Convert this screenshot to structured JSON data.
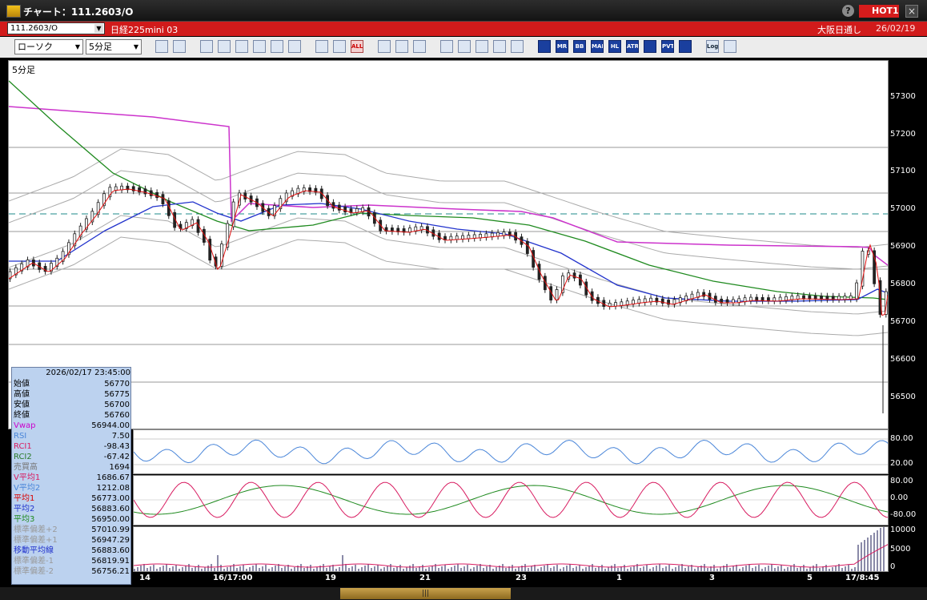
{
  "window": {
    "title": "チャート：111.2603/O",
    "hot_label": "HOT1",
    "help": "?",
    "close": "×"
  },
  "symbol_bar": {
    "code": "111.2603/O",
    "name": "日経225mini 03",
    "exchange": "大阪日通し",
    "date": "26/02/19"
  },
  "toolbar": {
    "chart_type": "ローソク",
    "period": "5分足",
    "icons": [
      "zoom-icon",
      "crosshair-icon",
      "pen-icon",
      "line-icon",
      "cursor-icon",
      "undo-icon",
      "list-icon",
      "trash-icon",
      "mark-icon",
      "mark2-icon",
      "all-icon",
      "grid-icon",
      "brush-icon",
      "color-icon",
      "download-icon",
      "search-icon",
      "table-icon",
      "swap-icon",
      "blank-icon",
      "table2-icon",
      "mr-icon",
      "bb-icon",
      "mae-icon",
      "hl-icon",
      "atr-icon",
      "rsi-icon",
      "pvt-icon",
      "box-icon",
      "log-icon",
      "plus-icon"
    ],
    "icon_labels": {
      "all": "ALL",
      "mr": "MR",
      "bb": "BB",
      "mae": "MAE",
      "hl": "HL",
      "atr": "ATR",
      "pvt": "PVT",
      "log": "Log"
    }
  },
  "main_chart": {
    "period_label": "5分足",
    "y_ticks": [
      "57300",
      "57200",
      "57100",
      "57000",
      "56900",
      "56800",
      "56700",
      "56600",
      "56500"
    ],
    "rsi_ticks": [
      "80.00",
      "20.00"
    ],
    "rci_ticks": [
      "80.00",
      "0.00",
      "-80.00"
    ],
    "vol_ticks": [
      "10000",
      "5000",
      "0"
    ],
    "x_ticks": [
      "14",
      "16/17:00",
      "19",
      "21",
      "23",
      "1",
      "3",
      "5",
      "17/8:45"
    ]
  },
  "info_panel": {
    "timestamp": "2026/02/17 23:45:00",
    "rows": [
      {
        "label": "始値",
        "value": "56770",
        "color": "#000000"
      },
      {
        "label": "高値",
        "value": "56775",
        "color": "#000000"
      },
      {
        "label": "安値",
        "value": "56700",
        "color": "#000000"
      },
      {
        "label": "終値",
        "value": "56760",
        "color": "#000000"
      },
      {
        "label": "Vwap",
        "value": "56944.00",
        "color": "#cc00cc"
      },
      {
        "label": "RSI",
        "value": "7.50",
        "color": "#4a86d9"
      },
      {
        "label": "RCI1",
        "value": "-98.43",
        "color": "#d81b60"
      },
      {
        "label": "RCI2",
        "value": "-67.42",
        "color": "#2a7a2a"
      },
      {
        "label": "売買高",
        "value": "1694",
        "color": "#777777"
      },
      {
        "label": "V平均1",
        "value": "1686.67",
        "color": "#d81b60"
      },
      {
        "label": "V平均2",
        "value": "1212.08",
        "color": "#4a86d9"
      },
      {
        "label": "平均1",
        "value": "56773.00",
        "color": "#d80000"
      },
      {
        "label": "平均2",
        "value": "56883.60",
        "color": "#2233cc"
      },
      {
        "label": "平均3",
        "value": "56950.00",
        "color": "#1f8a1f"
      },
      {
        "label": "標準偏差+2",
        "value": "57010.99",
        "color": "#999999"
      },
      {
        "label": "標準偏差+1",
        "value": "56947.29",
        "color": "#999999"
      },
      {
        "label": "移動平均線",
        "value": "56883.60",
        "color": "#2233cc"
      },
      {
        "label": "標準偏差-1",
        "value": "56819.91",
        "color": "#999999"
      },
      {
        "label": "標準偏差-2",
        "value": "56756.21",
        "color": "#999999"
      }
    ]
  },
  "scrollbar": {
    "thumb_label": "|||"
  },
  "colors": {
    "title_bar": "#1a1a1a",
    "symbol_bar": "#d11b1b",
    "toolbar": "#ececec",
    "chart_bg": "#ffffff"
  }
}
